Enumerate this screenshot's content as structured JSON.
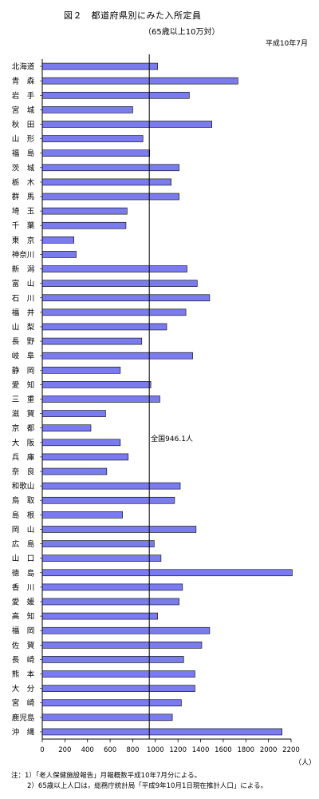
{
  "title": "図２　都道府県別にみた入所定員",
  "subtitle": "（65歳以上10万対）",
  "date": "平成10年7月",
  "annotation": "全国946.1人",
  "notes": [
    "注：1）「老人保健施設報告」月報概数平成10年7月分による。",
    "2）65歳以上人口は，総務庁統計局「平成9年10月1日現在推計人口」による。"
  ],
  "chart_data": {
    "type": "bar",
    "orientation": "horizontal",
    "title": "図２　都道府県別にみた入所定員",
    "subtitle": "（65歳以上10万対）",
    "xlabel": "（人）",
    "xlim": [
      0,
      2200
    ],
    "xticks": [
      0,
      200,
      400,
      600,
      800,
      1000,
      1200,
      1400,
      1600,
      1800,
      2000,
      2200
    ],
    "reference_line": {
      "value": 946.1,
      "label": "全国946.1人"
    },
    "bar_color": "#7b7bf0",
    "categories": [
      "北海道",
      "青　森",
      "岩　手",
      "宮　城",
      "秋　田",
      "山　形",
      "福　島",
      "茨　城",
      "栃　木",
      "群　馬",
      "埼　玉",
      "千　葉",
      "東　京",
      "神奈川",
      "新　潟",
      "富　山",
      "石　川",
      "福　井",
      "山　梨",
      "長　野",
      "岐　阜",
      "静　岡",
      "愛　知",
      "三　重",
      "滋　賀",
      "京　都",
      "大　阪",
      "兵　庫",
      "奈　良",
      "和歌山",
      "鳥　取",
      "島　根",
      "岡　山",
      "広　島",
      "山　口",
      "徳　島",
      "香　川",
      "愛　媛",
      "高　知",
      "福　岡",
      "佐　賀",
      "長　崎",
      "熊　本",
      "大　分",
      "宮　崎",
      "鹿児島",
      "沖　縄"
    ],
    "values": [
      1020,
      1730,
      1300,
      800,
      1500,
      890,
      950,
      1210,
      1140,
      1210,
      750,
      740,
      280,
      300,
      1280,
      1370,
      1480,
      1270,
      1100,
      880,
      1330,
      690,
      960,
      1040,
      560,
      430,
      690,
      760,
      570,
      1220,
      1170,
      710,
      1360,
      990,
      1050,
      2210,
      1240,
      1210,
      1020,
      1480,
      1410,
      1250,
      1350,
      1350,
      1230,
      1150,
      2120
    ]
  }
}
